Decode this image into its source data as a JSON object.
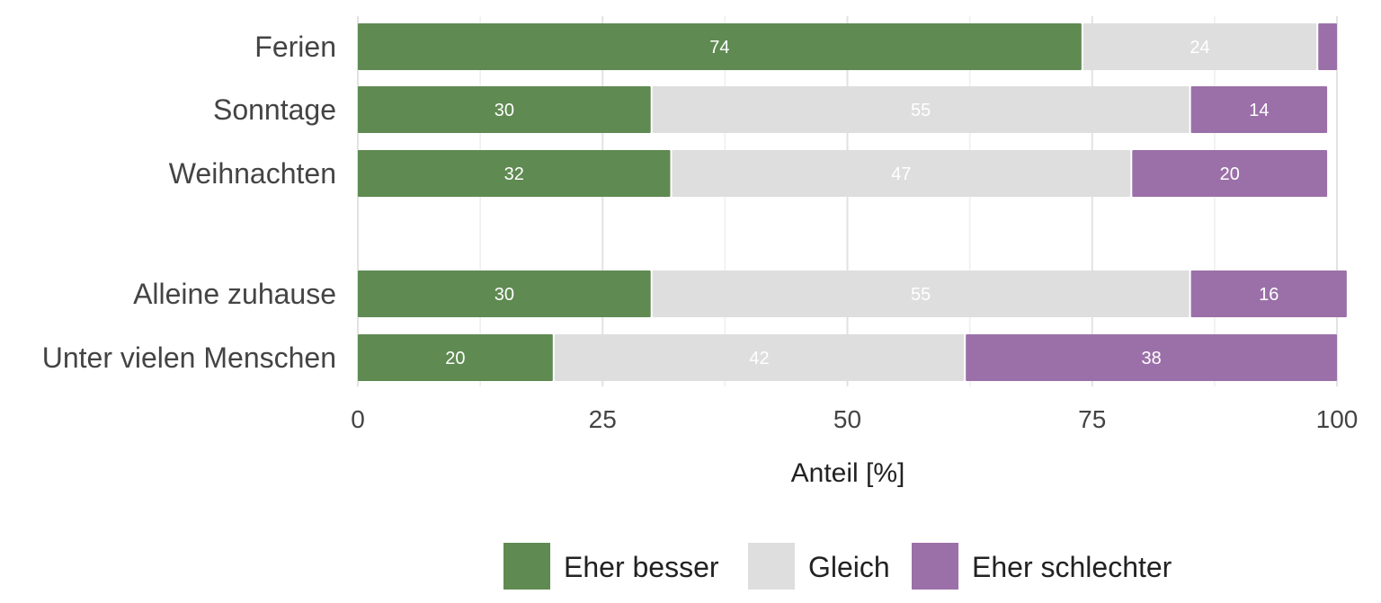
{
  "chart_data": {
    "type": "bar",
    "orientation": "horizontal",
    "stacked": true,
    "title": "",
    "xlabel": "Anteil [%]",
    "ylabel": "",
    "xlim": [
      0,
      100
    ],
    "x_ticks": [
      0,
      25,
      50,
      75,
      100
    ],
    "grid": true,
    "legend_position": "bottom",
    "categories": [
      "Ferien",
      "Sonntage",
      "Weihnachten",
      "Alleine zuhause",
      "Unter vielen Menschen"
    ],
    "groups": [
      [
        "Ferien",
        "Sonntage",
        "Weihnachten"
      ],
      [
        "Alleine zuhause",
        "Unter vielen Menschen"
      ]
    ],
    "series": [
      {
        "name": "Eher besser",
        "color": "#5f8a52",
        "values": [
          74,
          30,
          32,
          30,
          20
        ],
        "labels": [
          "74",
          "30",
          "32",
          "30",
          "20"
        ]
      },
      {
        "name": "Gleich",
        "color": "#dedede",
        "values": [
          24,
          55,
          47,
          55,
          42
        ],
        "labels": [
          "24",
          "55",
          "47",
          "55",
          "42"
        ]
      },
      {
        "name": "Eher schlechter",
        "color": "#9b70a8",
        "values": [
          2,
          14,
          20,
          16,
          38
        ],
        "labels": [
          "",
          "14",
          "20",
          "16",
          "38"
        ]
      }
    ]
  }
}
